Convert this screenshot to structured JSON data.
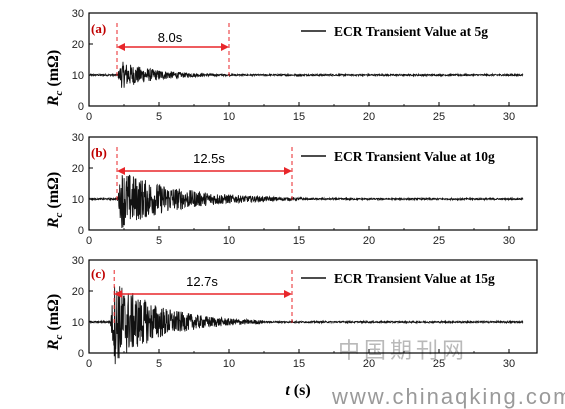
{
  "chart_data": [
    {
      "type": "line",
      "panel_label": "(a)",
      "ylabel": {
        "main": "R",
        "sub": "c",
        "unit": "(mΩ)"
      },
      "xlim": [
        0,
        32
      ],
      "ylim": [
        0,
        30
      ],
      "xticks": [
        "0",
        "5",
        "10",
        "15",
        "20",
        "25",
        "30"
      ],
      "yticks": [
        "0",
        "10",
        "20",
        "30"
      ],
      "legend": "ECR  Transient Value at 5g",
      "interval": {
        "start": 2.0,
        "end": 10.0,
        "label": "8.0s"
      },
      "signal": {
        "baseline": 10,
        "peak_amplitude": 4.5,
        "onset": 2.0,
        "decay_end": 10.0,
        "end_time": 31.0
      }
    },
    {
      "type": "line",
      "panel_label": "(b)",
      "ylabel": {
        "main": "R",
        "sub": "c",
        "unit": "(mΩ)"
      },
      "xlim": [
        0,
        32
      ],
      "ylim": [
        0,
        30
      ],
      "xticks": [
        "0",
        "5",
        "10",
        "15",
        "20",
        "25",
        "30"
      ],
      "yticks": [
        "0",
        "10",
        "20",
        "30"
      ],
      "legend": "ECR  Transient Value at 10g",
      "interval": {
        "start": 2.0,
        "end": 14.5,
        "label": "12.5s"
      },
      "signal": {
        "baseline": 10,
        "peak_amplitude": 9.5,
        "onset": 2.0,
        "decay_end": 14.5,
        "end_time": 31.0
      }
    },
    {
      "type": "line",
      "panel_label": "(c)",
      "ylabel": {
        "main": "R",
        "sub": "c",
        "unit": "(mΩ)"
      },
      "xlim": [
        0,
        32
      ],
      "ylim": [
        0,
        30
      ],
      "xticks": [
        "0",
        "5",
        "10",
        "15",
        "20",
        "25",
        "30"
      ],
      "yticks": [
        "0",
        "10",
        "20",
        "30"
      ],
      "legend": "ECR  Transient Value at 15g",
      "interval": {
        "start": 1.8,
        "end": 14.5,
        "label": "12.7s"
      },
      "signal": {
        "baseline": 10,
        "peak_amplitude": 14,
        "onset": 1.5,
        "decay_end": 11.5,
        "end_time": 31.0
      }
    }
  ],
  "xlabel": {
    "main": "t",
    "unit": "(s)"
  },
  "watermark": {
    "cn": "中国期刊网",
    "url": "www.chinaqking.com"
  },
  "colors": {
    "signal": "#111111",
    "marker": "#e8262a",
    "panel_label": "#c00000",
    "axis": "#000000"
  }
}
